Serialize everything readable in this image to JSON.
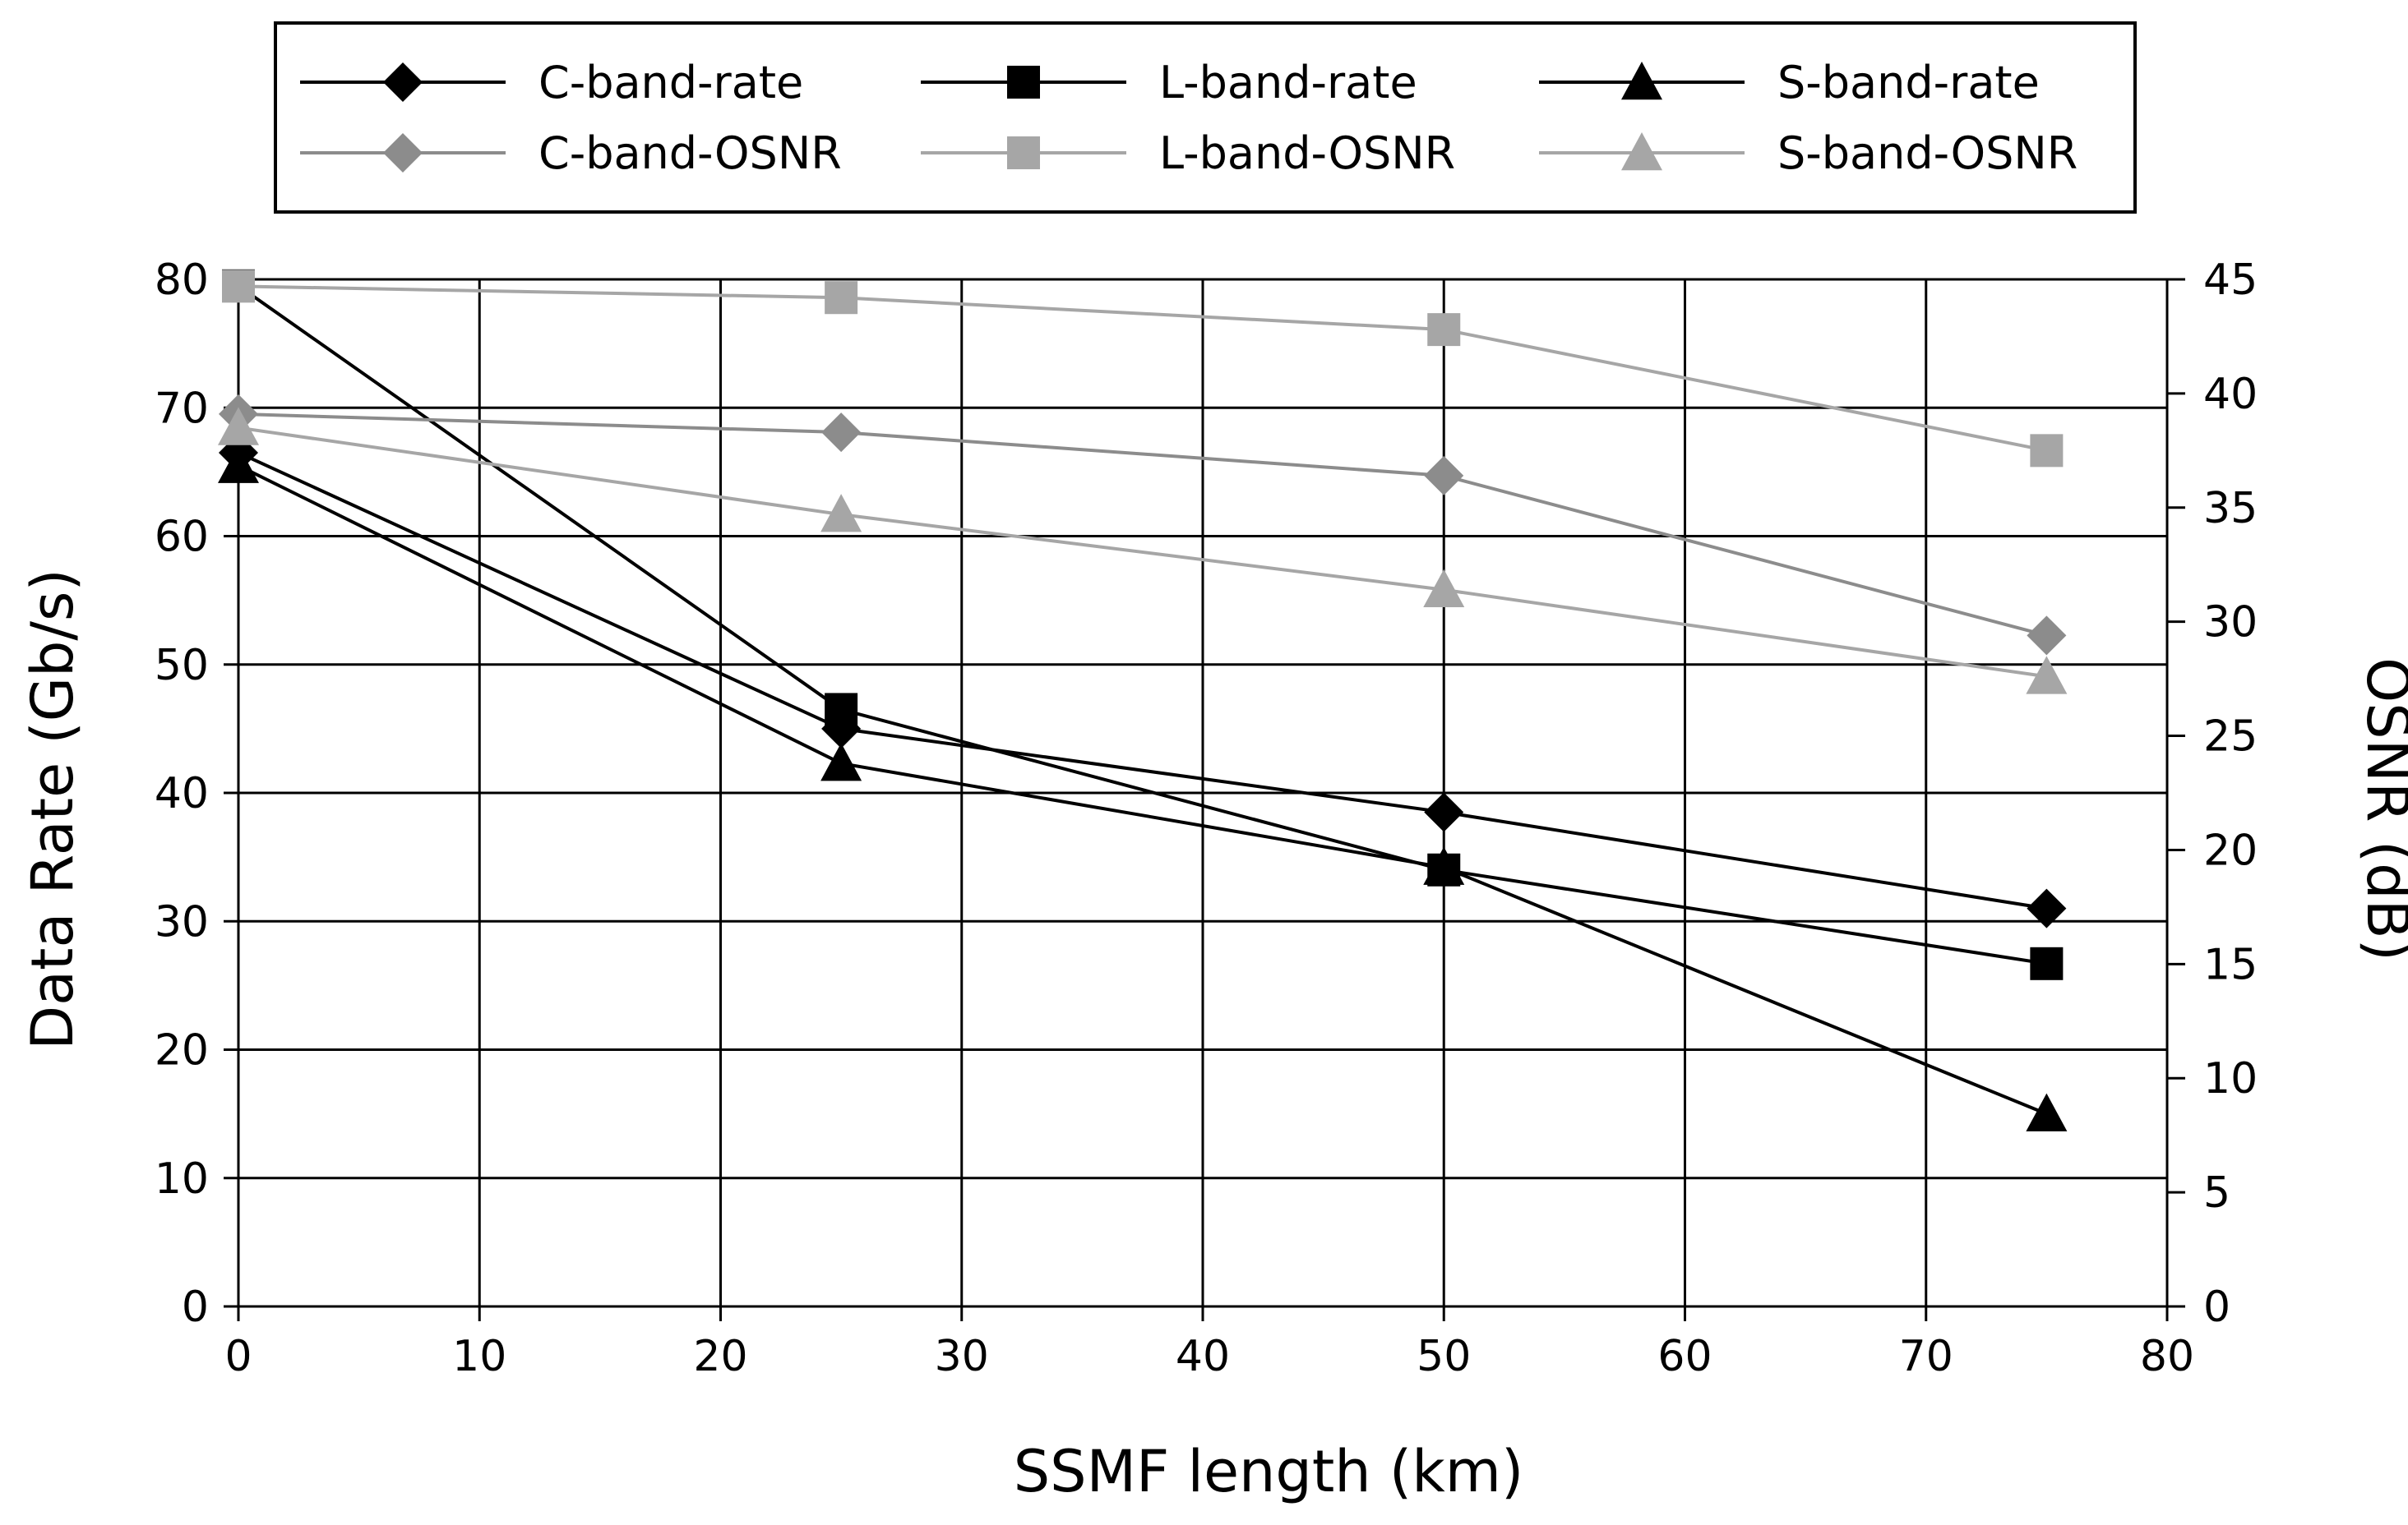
{
  "chart_data": {
    "type": "line",
    "xlabel": "SSMF length (km)",
    "ylabel": "Data Rate (Gb/s)",
    "y2label": "OSNR (dB)",
    "xlim": [
      0,
      80
    ],
    "ylim": [
      0,
      80
    ],
    "y2lim": [
      0,
      45
    ],
    "xticks": [
      0,
      10,
      20,
      30,
      40,
      50,
      60,
      70,
      80
    ],
    "yticks": [
      0,
      10,
      20,
      30,
      40,
      50,
      60,
      70,
      80
    ],
    "y2ticks": [
      0,
      5,
      10,
      15,
      20,
      25,
      30,
      35,
      40,
      45
    ],
    "grid": true,
    "legend_position": "top",
    "x": [
      0,
      25,
      50,
      75
    ],
    "series": [
      {
        "name": "C-band-rate",
        "axis": "left",
        "marker": "diamond",
        "color": "#000000",
        "values": [
          66.5,
          45.0,
          38.5,
          31.0
        ]
      },
      {
        "name": "L-band-rate",
        "axis": "left",
        "marker": "square",
        "color": "#000000",
        "values": [
          79.5,
          46.5,
          34.0,
          26.7
        ]
      },
      {
        "name": "S-band-rate",
        "axis": "left",
        "marker": "triangle",
        "color": "#000000",
        "values": [
          65.5,
          42.3,
          34.2,
          15.0
        ]
      },
      {
        "name": "C-band-OSNR",
        "axis": "right",
        "marker": "diamond",
        "color": "#8c8c8c",
        "values": [
          39.1,
          38.3,
          36.4,
          29.4
        ]
      },
      {
        "name": "L-band-OSNR",
        "axis": "right",
        "marker": "square",
        "color": "#a6a6a6",
        "values": [
          44.7,
          44.2,
          42.8,
          37.5
        ]
      },
      {
        "name": "S-band-OSNR",
        "axis": "right",
        "marker": "triangle",
        "color": "#a6a6a6",
        "values": [
          38.5,
          34.7,
          31.4,
          27.6
        ]
      }
    ]
  }
}
